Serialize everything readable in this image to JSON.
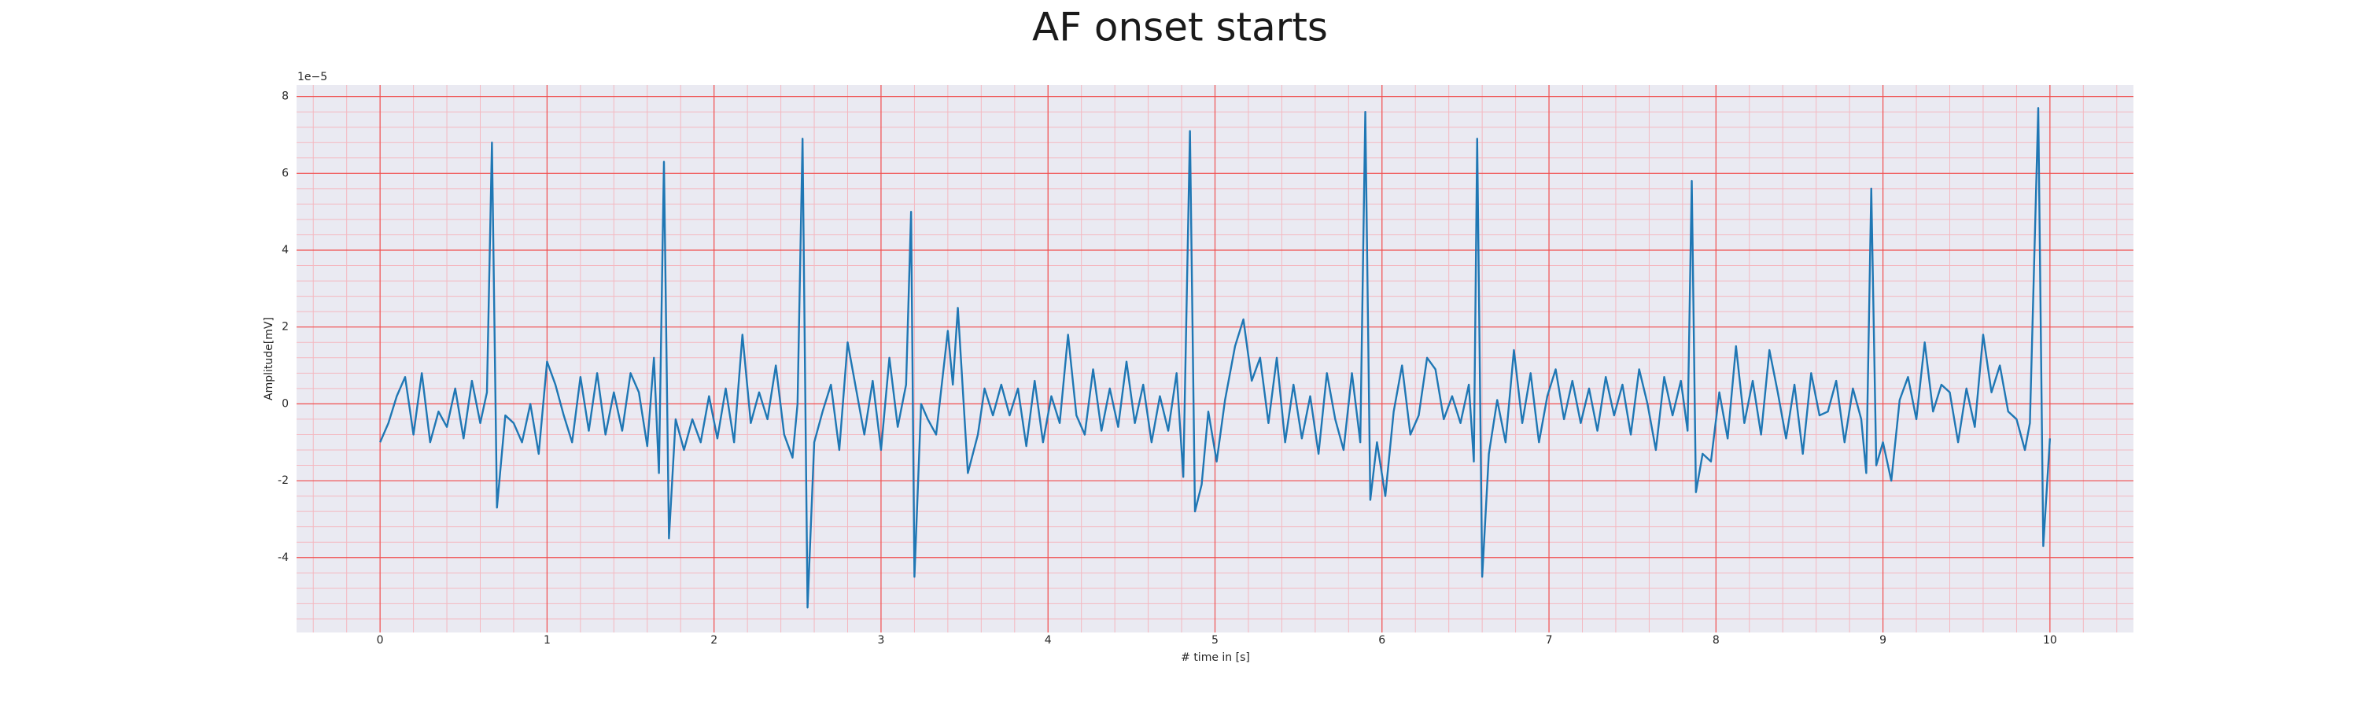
{
  "chart_data": {
    "type": "line",
    "title": "AF onset starts",
    "x_label": "# time in [s]",
    "y_label": "Amplitude[mV]",
    "y_offset_text": "1e−5",
    "color": "#1f77b4",
    "grid": true,
    "minor_grid": true,
    "xlim": [
      -0.5,
      10.5
    ],
    "xticks": [
      0,
      1,
      2,
      3,
      4,
      5,
      6,
      7,
      8,
      9,
      10
    ],
    "ylim": [
      -5.95,
      8.3
    ],
    "yticks": [
      -4,
      -2,
      0,
      2,
      4,
      6,
      8
    ],
    "x": [
      0.0,
      0.05,
      0.1,
      0.15,
      0.2,
      0.25,
      0.3,
      0.35,
      0.4,
      0.45,
      0.5,
      0.55,
      0.6,
      0.64,
      0.67,
      0.7,
      0.75,
      0.8,
      0.85,
      0.9,
      0.95,
      1.0,
      1.05,
      1.1,
      1.15,
      1.2,
      1.25,
      1.3,
      1.35,
      1.4,
      1.45,
      1.5,
      1.55,
      1.6,
      1.64,
      1.67,
      1.7,
      1.73,
      1.77,
      1.82,
      1.87,
      1.92,
      1.97,
      2.02,
      2.07,
      2.12,
      2.17,
      2.22,
      2.27,
      2.32,
      2.37,
      2.42,
      2.47,
      2.5,
      2.53,
      2.56,
      2.6,
      2.65,
      2.7,
      2.75,
      2.8,
      2.85,
      2.9,
      2.95,
      3.0,
      3.05,
      3.1,
      3.15,
      3.18,
      3.2,
      3.24,
      3.28,
      3.33,
      3.4,
      3.43,
      3.46,
      3.52,
      3.58,
      3.62,
      3.67,
      3.72,
      3.77,
      3.82,
      3.87,
      3.92,
      3.97,
      4.02,
      4.07,
      4.12,
      4.17,
      4.22,
      4.27,
      4.32,
      4.37,
      4.42,
      4.47,
      4.52,
      4.57,
      4.62,
      4.67,
      4.72,
      4.77,
      4.81,
      4.85,
      4.88,
      4.92,
      4.96,
      5.01,
      5.06,
      5.12,
      5.17,
      5.22,
      5.27,
      5.32,
      5.37,
      5.42,
      5.47,
      5.52,
      5.57,
      5.62,
      5.67,
      5.72,
      5.77,
      5.82,
      5.87,
      5.9,
      5.93,
      5.97,
      6.02,
      6.07,
      6.12,
      6.17,
      6.22,
      6.27,
      6.32,
      6.37,
      6.42,
      6.47,
      6.52,
      6.55,
      6.57,
      6.6,
      6.64,
      6.69,
      6.74,
      6.79,
      6.84,
      6.89,
      6.94,
      6.99,
      7.04,
      7.09,
      7.14,
      7.19,
      7.24,
      7.29,
      7.34,
      7.39,
      7.44,
      7.49,
      7.54,
      7.59,
      7.64,
      7.69,
      7.74,
      7.79,
      7.83,
      7.855,
      7.88,
      7.92,
      7.97,
      8.02,
      8.07,
      8.12,
      8.17,
      8.22,
      8.27,
      8.32,
      8.37,
      8.42,
      8.47,
      8.52,
      8.57,
      8.62,
      8.67,
      8.72,
      8.77,
      8.82,
      8.87,
      8.9,
      8.93,
      8.96,
      9.0,
      9.05,
      9.1,
      9.15,
      9.2,
      9.25,
      9.3,
      9.35,
      9.4,
      9.45,
      9.5,
      9.55,
      9.6,
      9.65,
      9.7,
      9.75,
      9.8,
      9.85,
      9.88,
      9.93,
      9.96,
      10.0
    ],
    "values": [
      -1.0,
      -0.5,
      0.2,
      0.7,
      -0.8,
      0.8,
      -1.0,
      -0.2,
      -0.6,
      0.4,
      -0.9,
      0.6,
      -0.5,
      0.3,
      6.8,
      -2.7,
      -0.3,
      -0.5,
      -1.0,
      0.0,
      -1.3,
      1.1,
      0.5,
      -0.3,
      -1.0,
      0.7,
      -0.7,
      0.8,
      -0.8,
      0.3,
      -0.7,
      0.8,
      0.3,
      -1.1,
      1.2,
      -1.8,
      6.3,
      -3.5,
      -0.4,
      -1.2,
      -0.4,
      -1.0,
      0.2,
      -0.9,
      0.4,
      -1.0,
      1.8,
      -0.5,
      0.3,
      -0.4,
      1.0,
      -0.8,
      -1.4,
      0.0,
      6.9,
      -5.3,
      -1.0,
      -0.2,
      0.5,
      -1.2,
      1.6,
      0.4,
      -0.8,
      0.6,
      -1.2,
      1.2,
      -0.6,
      0.5,
      5.0,
      -4.5,
      0.0,
      -0.4,
      -0.8,
      1.9,
      0.5,
      2.5,
      -1.8,
      -0.8,
      0.4,
      -0.3,
      0.5,
      -0.3,
      0.4,
      -1.1,
      0.6,
      -1.0,
      0.2,
      -0.5,
      1.8,
      -0.3,
      -0.8,
      0.9,
      -0.7,
      0.4,
      -0.6,
      1.1,
      -0.5,
      0.5,
      -1.0,
      0.2,
      -0.7,
      0.8,
      -1.9,
      7.1,
      -2.8,
      -2.1,
      -0.2,
      -1.5,
      0.1,
      1.5,
      2.2,
      0.6,
      1.2,
      -0.5,
      1.2,
      -1.0,
      0.5,
      -0.9,
      0.2,
      -1.3,
      0.8,
      -0.4,
      -1.2,
      0.8,
      -1.0,
      7.6,
      -2.5,
      -1.0,
      -2.4,
      -0.2,
      1.0,
      -0.8,
      -0.3,
      1.2,
      0.9,
      -0.4,
      0.2,
      -0.5,
      0.5,
      -1.5,
      6.9,
      -4.5,
      -1.3,
      0.1,
      -1.0,
      1.4,
      -0.5,
      0.8,
      -1.0,
      0.2,
      0.9,
      -0.4,
      0.6,
      -0.5,
      0.4,
      -0.7,
      0.7,
      -0.3,
      0.5,
      -0.8,
      0.9,
      0.0,
      -1.2,
      0.7,
      -0.3,
      0.6,
      -0.7,
      5.8,
      -2.3,
      -1.3,
      -1.5,
      0.3,
      -0.9,
      1.5,
      -0.5,
      0.6,
      -0.8,
      1.4,
      0.3,
      -0.9,
      0.5,
      -1.3,
      0.8,
      -0.3,
      -0.2,
      0.6,
      -1.0,
      0.4,
      -0.4,
      -1.8,
      5.6,
      -1.6,
      -1.0,
      -2.0,
      0.1,
      0.7,
      -0.4,
      1.6,
      -0.2,
      0.5,
      0.3,
      -1.0,
      0.4,
      -0.6,
      1.8,
      0.3,
      1.0,
      -0.2,
      -0.4,
      -1.2,
      -0.5,
      7.7,
      -3.7,
      -0.9
    ]
  }
}
